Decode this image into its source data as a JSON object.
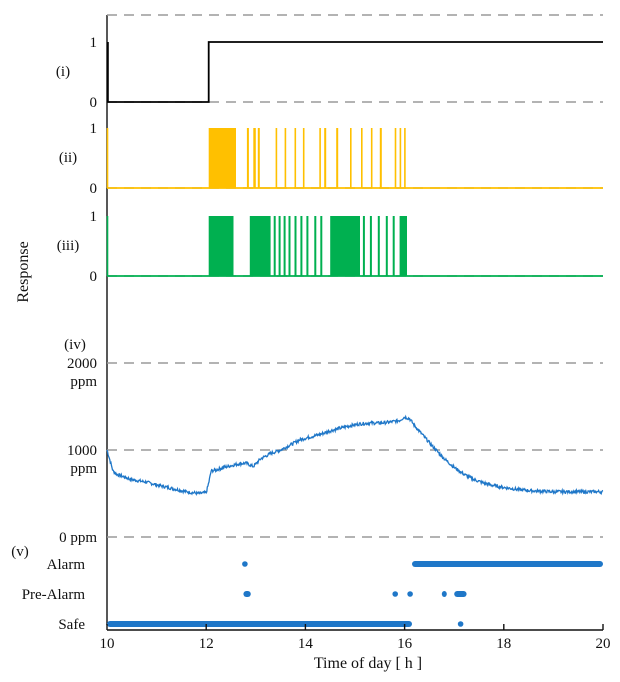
{
  "chart_data": {
    "type": "line",
    "xlabel": "Time of day [ h ]",
    "ylabel": "Response",
    "x_ticks": [
      10,
      12,
      14,
      16,
      18,
      20
    ],
    "xlim": [
      10,
      20
    ],
    "colors": {
      "i": "#000000",
      "ii": "#FFC000",
      "iii": "#00B050",
      "iv": "#1F77C8",
      "v": "#1F77C8"
    },
    "panels": [
      {
        "id": "i",
        "label": "(i)",
        "type": "step",
        "y_ticks": [
          "1",
          "0"
        ],
        "ylim": [
          0,
          1
        ],
        "spike_at": 10.02,
        "x": [
          10.0,
          12.05,
          12.05,
          20.0
        ],
        "y": [
          0,
          0,
          1,
          1
        ]
      },
      {
        "id": "ii",
        "label": "(ii)",
        "type": "binary",
        "y_ticks": [
          "1",
          "0"
        ],
        "ylim": [
          0,
          1
        ],
        "spike_at": 10.01,
        "on_intervals": [
          [
            12.05,
            12.6
          ],
          [
            12.82,
            12.86
          ],
          [
            12.95,
            13.0
          ],
          [
            13.04,
            13.08
          ],
          [
            13.4,
            13.43
          ],
          [
            13.58,
            13.61
          ],
          [
            13.78,
            13.81
          ],
          [
            13.95,
            13.98
          ],
          [
            14.28,
            14.31
          ],
          [
            14.38,
            14.42
          ],
          [
            14.62,
            14.66
          ],
          [
            14.9,
            14.93
          ],
          [
            15.12,
            15.15
          ],
          [
            15.32,
            15.35
          ],
          [
            15.5,
            15.54
          ],
          [
            15.8,
            15.83
          ],
          [
            15.9,
            15.93
          ],
          [
            15.99,
            16.02
          ]
        ]
      },
      {
        "id": "iii",
        "label": "(iii)",
        "type": "binary",
        "y_ticks": [
          "1",
          "0"
        ],
        "ylim": [
          0,
          1
        ],
        "spike_at": 10.01,
        "on_intervals": [
          [
            12.05,
            12.55
          ],
          [
            12.88,
            13.3
          ],
          [
            13.36,
            13.4
          ],
          [
            13.46,
            13.5
          ],
          [
            13.56,
            13.6
          ],
          [
            13.66,
            13.7
          ],
          [
            13.78,
            13.82
          ],
          [
            13.9,
            13.94
          ],
          [
            14.02,
            14.06
          ],
          [
            14.18,
            14.22
          ],
          [
            14.3,
            14.34
          ],
          [
            14.5,
            15.1
          ],
          [
            15.16,
            15.2
          ],
          [
            15.3,
            15.34
          ],
          [
            15.46,
            15.5
          ],
          [
            15.62,
            15.66
          ],
          [
            15.76,
            15.8
          ],
          [
            15.9,
            16.05
          ]
        ]
      },
      {
        "id": "iv",
        "label": "(iv)",
        "type": "line",
        "unit": "ppm",
        "y_ticks": [
          "2000",
          "1000",
          "0 ppm"
        ],
        "ylim": [
          0,
          2000
        ],
        "x": [
          10.0,
          10.05,
          10.12,
          10.2,
          10.3,
          10.5,
          10.8,
          11.0,
          11.3,
          11.6,
          11.85,
          12.0,
          12.05,
          12.1,
          12.2,
          12.35,
          12.5,
          12.65,
          12.8,
          12.95,
          13.1,
          13.3,
          13.5,
          13.7,
          13.9,
          14.1,
          14.3,
          14.5,
          14.7,
          14.9,
          15.1,
          15.3,
          15.5,
          15.7,
          15.9,
          16.0,
          16.1,
          16.2,
          16.4,
          16.6,
          16.8,
          17.0,
          17.2,
          17.4,
          17.6,
          17.8,
          18.0,
          18.3,
          18.6,
          19.0,
          19.5,
          20.0
        ],
        "y": [
          1000,
          900,
          760,
          720,
          700,
          660,
          630,
          600,
          560,
          520,
          500,
          510,
          620,
          760,
          770,
          800,
          820,
          840,
          850,
          810,
          900,
          960,
          1000,
          1060,
          1120,
          1150,
          1180,
          1220,
          1250,
          1280,
          1300,
          1310,
          1310,
          1320,
          1340,
          1380,
          1360,
          1280,
          1150,
          1020,
          900,
          800,
          720,
          660,
          620,
          590,
          570,
          545,
          530,
          520,
          520,
          520
        ],
        "noise": 18
      },
      {
        "id": "v",
        "label": "(v)",
        "type": "scatter",
        "levels": [
          "Alarm",
          "Pre-Alarm",
          "Safe"
        ],
        "points": {
          "Alarm": [
            [
              12.77,
              12.79
            ]
          ],
          "Pre-Alarm": [
            [
              12.75,
              12.9
            ],
            [
              15.8,
              15.82
            ],
            [
              16.1,
              16.12
            ],
            [
              16.75,
              16.85
            ],
            [
              17.0,
              17.25
            ]
          ],
          "Safe": [
            [
              10.0,
              16.15
            ],
            [
              17.1,
              17.16
            ]
          ]
        },
        "alarm_run": [
          16.15,
          20.0
        ]
      }
    ]
  }
}
